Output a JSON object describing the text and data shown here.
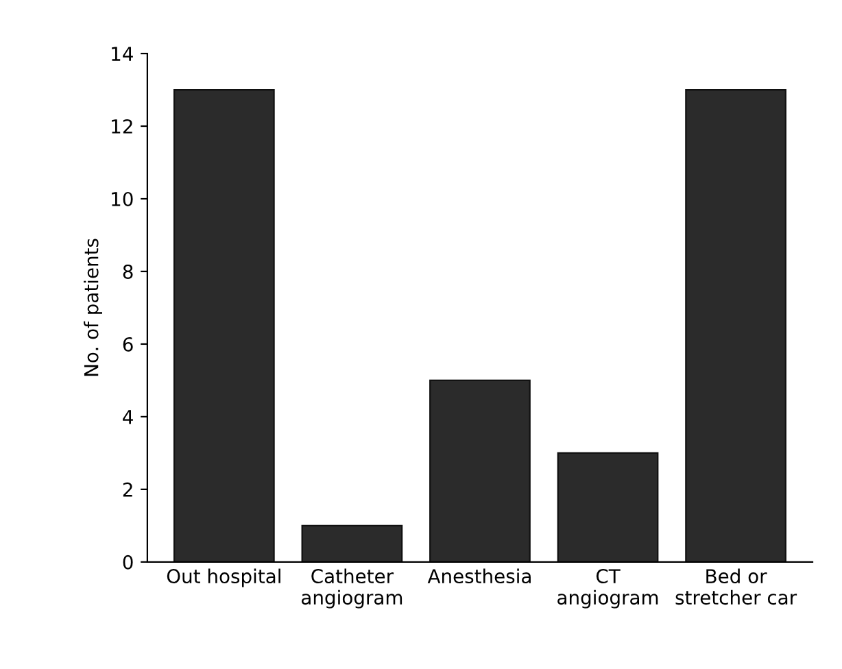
{
  "chart_data": {
    "type": "bar",
    "ylabel": "No. of patients",
    "categories": [
      "Out hospital",
      "Catheter\nangiogram",
      "Anesthesia",
      "CT\nangiogram",
      "Bed or\nstretcher car"
    ],
    "values": [
      13,
      1,
      5,
      3,
      13
    ],
    "color": "#2b2b2b",
    "ylim": [
      0,
      14
    ],
    "yticks": [
      0,
      2,
      4,
      6,
      8,
      10,
      12,
      14
    ],
    "grid": false
  }
}
